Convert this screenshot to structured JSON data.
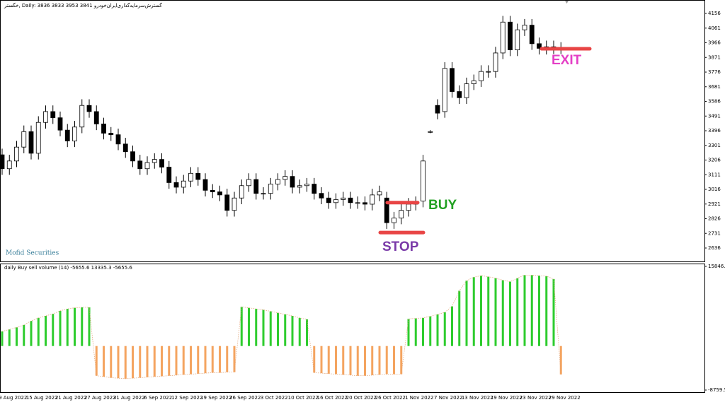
{
  "chart_data": [
    {
      "type": "candlestick",
      "title": "خگستر, Daily: 3836 3833 3953 3841 گسترش‌سرمایه‌گذاری‌ایران‌خودرو",
      "watermark": "Mofid Securities",
      "categories": [
        null,
        "9 Aug 2022",
        null,
        null,
        null,
        "15 Aug 2022",
        null,
        null,
        null,
        "21 Aug 2022",
        null,
        null,
        null,
        "27 Aug 2022",
        null,
        null,
        null,
        "31 Aug 2022",
        null,
        null,
        null,
        "6 Sep 2022",
        null,
        null,
        null,
        "12 Sep 2022",
        null,
        null,
        null,
        "19 Sep 2022",
        null,
        null,
        null,
        "26 Sep 2022",
        null,
        null,
        null,
        "3 Oct 2022",
        null,
        null,
        null,
        "10 Oct 2022",
        null,
        null,
        null,
        "16 Oct 2022",
        null,
        null,
        null,
        "20 Oct 2022",
        null,
        null,
        null,
        "26 Oct 2022",
        null,
        null,
        null,
        "1 Nov 2022",
        null,
        null,
        null,
        "7 Nov 2022",
        null,
        null,
        null,
        "13 Nov 2022",
        null,
        null,
        null,
        "19 Nov 2022",
        null,
        null,
        null,
        "23 Nov 2022",
        null,
        null,
        null,
        "29 Nov 2022"
      ],
      "open": [
        3240,
        3150,
        3200,
        3290,
        3390,
        3250,
        3450,
        3520,
        3480,
        3400,
        3330,
        3420,
        3560,
        3520,
        3440,
        3380,
        3370,
        3310,
        3260,
        3200,
        3150,
        3190,
        3210,
        3160,
        3060,
        3030,
        3070,
        3120,
        3080,
        3010,
        3000,
        2980,
        2880,
        2960,
        3040,
        3080,
        2990,
        2990,
        3050,
        3080,
        3100,
        3030,
        3040,
        3050,
        2990,
        2960,
        2930,
        2950,
        2960,
        2930,
        2930,
        2920,
        2980,
        2960,
        2800,
        2830,
        2880,
        2920,
        2940,
        3390,
        3560,
        3520,
        3800,
        3650,
        3610,
        3700,
        3720,
        3780,
        3780,
        3900,
        4100,
        3920,
        4050,
        4080,
        3960,
        3930,
        3940,
        3930
      ],
      "high": [
        3280,
        3240,
        3330,
        3430,
        3430,
        3490,
        3560,
        3560,
        3520,
        3440,
        3460,
        3600,
        3600,
        3560,
        3480,
        3420,
        3410,
        3350,
        3300,
        3240,
        3230,
        3250,
        3250,
        3200,
        3100,
        3110,
        3160,
        3160,
        3120,
        3050,
        3040,
        3020,
        3000,
        3080,
        3120,
        3120,
        3030,
        3090,
        3120,
        3140,
        3140,
        3080,
        3090,
        3090,
        3030,
        3000,
        2990,
        3000,
        3000,
        2970,
        2970,
        3020,
        3040,
        3000,
        2870,
        2920,
        2960,
        2970,
        3240,
        3400,
        3600,
        3840,
        3840,
        3690,
        3740,
        3760,
        3820,
        3820,
        3940,
        4140,
        4140,
        4090,
        4120,
        4120,
        4000,
        3980,
        3980,
        3970
      ],
      "low": [
        3110,
        3110,
        3160,
        3250,
        3210,
        3210,
        3410,
        3440,
        3360,
        3290,
        3290,
        3380,
        3480,
        3400,
        3340,
        3330,
        3270,
        3220,
        3160,
        3110,
        3110,
        3150,
        3120,
        3020,
        2990,
        2990,
        3030,
        3040,
        2970,
        2960,
        2940,
        2840,
        2840,
        2920,
        3000,
        2950,
        2950,
        2950,
        3010,
        3040,
        2990,
        2990,
        3000,
        2950,
        2920,
        2890,
        2890,
        2910,
        2890,
        2890,
        2880,
        2880,
        2940,
        2760,
        2760,
        2790,
        2840,
        2880,
        2900,
        3380,
        3470,
        3480,
        3610,
        3570,
        3570,
        3660,
        3680,
        3740,
        3740,
        3860,
        3880,
        3880,
        4010,
        3920,
        3890,
        3890,
        3890,
        3890
      ],
      "close": [
        3150,
        3200,
        3290,
        3390,
        3250,
        3450,
        3520,
        3480,
        3400,
        3330,
        3420,
        3560,
        3520,
        3440,
        3380,
        3370,
        3310,
        3260,
        3200,
        3150,
        3190,
        3210,
        3160,
        3060,
        3030,
        3070,
        3120,
        3080,
        3010,
        3000,
        2980,
        2880,
        2960,
        3040,
        3080,
        2990,
        2990,
        3050,
        3080,
        3100,
        3030,
        3040,
        3050,
        2990,
        2960,
        2930,
        2950,
        2960,
        2930,
        2930,
        2920,
        2980,
        3000,
        2800,
        2830,
        2880,
        2920,
        2930,
        3200,
        3390,
        3510,
        3800,
        3650,
        3610,
        3700,
        3720,
        3780,
        3780,
        3900,
        4100,
        3920,
        4050,
        4080,
        3960,
        3930,
        3940,
        3930,
        3930
      ],
      "ylim": [
        2549,
        4234
      ],
      "yticks": [
        2636,
        2731,
        2826,
        2921,
        3016,
        3111,
        3206,
        3301,
        3396,
        3491,
        3586,
        3681,
        3776,
        3871,
        3966,
        4061,
        4156
      ],
      "annotations": [
        {
          "text": "BUY",
          "value": 2930,
          "color": "#22a022"
        },
        {
          "text": "STOP",
          "value": 2736,
          "color": "#7a3aa8"
        },
        {
          "text": "EXIT",
          "value": 3927,
          "color": "#e43fc6"
        }
      ],
      "line_color": "#e84545"
    },
    {
      "type": "bar",
      "title": "daily Buy sell volume (14) -5655.6 13335.3 -5655.6",
      "values": [
        2900,
        3300,
        3700,
        4200,
        5000,
        5600,
        6000,
        6400,
        7000,
        7400,
        7600,
        7700,
        7700,
        -5900,
        -6100,
        -6300,
        -6400,
        -6500,
        -6400,
        -6300,
        -6200,
        -6100,
        -6000,
        -5900,
        -5800,
        -5700,
        -5600,
        -5500,
        -5400,
        -5300,
        -5300,
        -5200,
        -5200,
        7800,
        7600,
        7400,
        7200,
        6900,
        6600,
        6300,
        6000,
        5600,
        5300,
        -5300,
        -5400,
        -5500,
        -5600,
        -5700,
        -5800,
        -5900,
        -5900,
        -5800,
        -5700,
        -5600,
        -5600,
        -5600,
        5400,
        5500,
        5600,
        5900,
        6300,
        6700,
        7900,
        11000,
        13000,
        13700,
        14000,
        13800,
        13500,
        13100,
        12800,
        13500,
        14100,
        14100,
        14000,
        13900,
        13335.3,
        -5655.6
      ],
      "color_up": "#2ecc2e",
      "color_down": "#f4a460",
      "ylim": [
        -8759.5,
        15846.5
      ],
      "yticks": [
        -8759.5,
        15846.5
      ]
    }
  ]
}
